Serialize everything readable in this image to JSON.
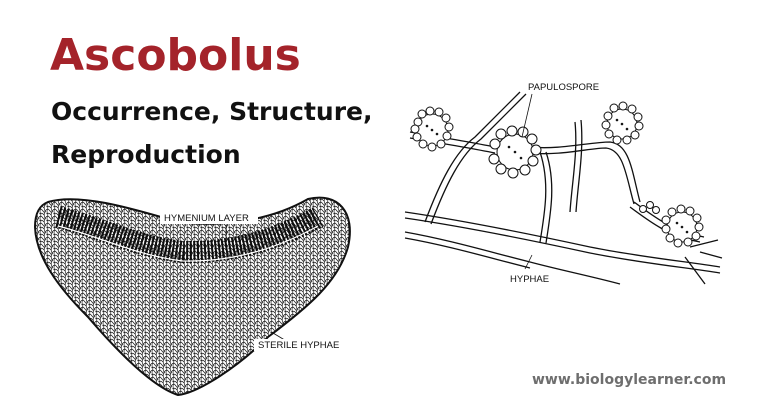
{
  "title": "Ascobolus",
  "subtitle_lines": [
    "Occurrence, Structure,",
    "Reproduction"
  ],
  "diagram_left": {
    "labels": {
      "hymenium": "HYMENIUM LAYER",
      "sterile": "STERILE HYPHAE"
    }
  },
  "diagram_right": {
    "labels": {
      "papulospore": "PAPULOSPORE",
      "hyphae": "HYPHAE"
    }
  },
  "footer": "www.biologylearner.com",
  "colors": {
    "title": "#a4232a",
    "text": "#111111",
    "footer": "#6e6e6e"
  }
}
